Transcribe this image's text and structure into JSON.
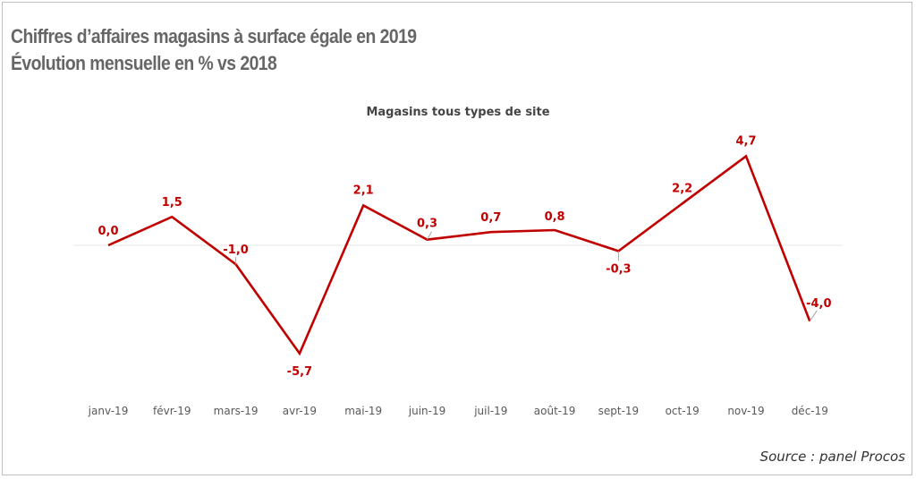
{
  "header": {
    "title_line1": "Chiffres d’affaires magasins à surface égale en 2019",
    "title_line2": "Évolution mensuelle en % vs 2018"
  },
  "source": "Source : panel Procos",
  "chart_data": {
    "type": "line",
    "title": "Magasins tous types de site",
    "categories": [
      "janv-19",
      "févr-19",
      "mars-19",
      "avr-19",
      "mai-19",
      "juin-19",
      "juil-19",
      "août-19",
      "sept-19",
      "oct-19",
      "nov-19",
      "déc-19"
    ],
    "series": [
      {
        "values": [
          0.0,
          1.5,
          -1.0,
          -5.7,
          2.1,
          0.3,
          0.7,
          0.8,
          -0.3,
          2.2,
          4.7,
          -4.0
        ],
        "labels": [
          "0,0",
          "1,5",
          "-1,0",
          "-5,7",
          "2,1",
          "0,3",
          "0,7",
          "0,8",
          "-0,3",
          "2,2",
          "4,7",
          "-4,0"
        ],
        "color": "#c00000"
      }
    ],
    "ylim": [
      -7,
      6
    ],
    "grid": false,
    "zero_line": true,
    "line_color": "#c00000",
    "label_color": "#c00000",
    "tick_color": "#595959"
  }
}
